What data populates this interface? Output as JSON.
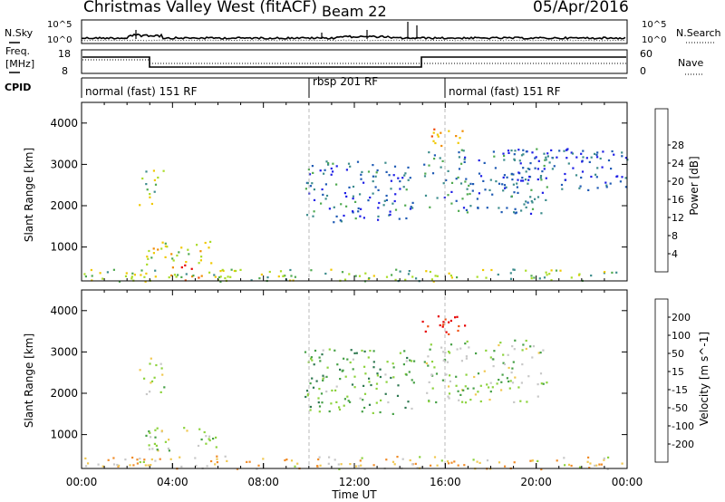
{
  "header": {
    "station": "Christmas Valley West (fitACF)",
    "beam": "Beam 22",
    "date": "05/Apr/2016"
  },
  "sky_panel": {
    "left_label": "N.Sky",
    "right_label": "N.Search",
    "ticks_left": [
      "10^5",
      "10^0"
    ],
    "ticks_right": [
      "10^5",
      "10^0"
    ]
  },
  "freq_panel": {
    "left_label_1": "Freq.",
    "left_label_2": "[MHz]",
    "right_label": "Nave",
    "ticks_left": [
      "18",
      "8"
    ],
    "ticks_right": [
      "60",
      "0"
    ]
  },
  "cpid": {
    "label": "CPID",
    "segments": [
      {
        "start_hour": 0,
        "label": "normal (fast) 151 RF"
      },
      {
        "start_hour": 10,
        "label": "rbsp 201 RF"
      },
      {
        "start_hour": 16,
        "label": "normal (fast) 151 RF"
      }
    ]
  },
  "chart_data": [
    {
      "type": "heatmap",
      "ylabel": "Slant Range [km]",
      "yticks": [
        "1000",
        "2000",
        "3000",
        "4000"
      ],
      "ylim": [
        180,
        4500
      ],
      "xlim": [
        0,
        24
      ],
      "colorbar": {
        "label": "Power [dB]",
        "ticks": [
          "4",
          "8",
          "12",
          "16",
          "20",
          "24",
          "28"
        ],
        "colors": [
          "#1e1ee6",
          "#1e5ab4",
          "#3c8c8c",
          "#50aa50",
          "#aadc28",
          "#f0c800",
          "#f08c00",
          "#f04600",
          "#e60000"
        ]
      },
      "regions": [
        {
          "t0": 2.8,
          "t1": 5.9,
          "r0": 600,
          "r1": 1200,
          "level": 0.55
        },
        {
          "t0": 3.6,
          "t1": 5.4,
          "r0": 200,
          "r1": 650,
          "level": 0.85
        },
        {
          "t0": 14.9,
          "t1": 16.8,
          "r0": 3450,
          "r1": 3900,
          "level": 0.7
        },
        {
          "t0": 2.5,
          "t1": 3.6,
          "r0": 2000,
          "r1": 2900,
          "level": 0.45
        },
        {
          "t0": 9.8,
          "t1": 14.6,
          "r0": 1600,
          "r1": 3100,
          "level": 0.2
        },
        {
          "t0": 15.0,
          "t1": 20.5,
          "r0": 1800,
          "r1": 3400,
          "level": 0.25
        },
        {
          "t0": 18.5,
          "t1": 24.0,
          "r0": 2400,
          "r1": 3400,
          "level": 0.15
        },
        {
          "t0": 0.0,
          "t1": 24.0,
          "r0": 180,
          "r1": 480,
          "level": 0.45
        }
      ]
    },
    {
      "type": "heatmap",
      "ylabel": "Slant Range [km]",
      "yticks": [
        "1000",
        "2000",
        "3000",
        "4000"
      ],
      "ylim": [
        180,
        4500
      ],
      "xlim": [
        0,
        24
      ],
      "colorbar": {
        "label": "Velocity [m s^-1]",
        "ticks": [
          "200",
          "100",
          "50",
          "15",
          "-15",
          "-50",
          "-100",
          "-200"
        ],
        "colors": [
          "#1e3cb4",
          "#2d7850",
          "#46a046",
          "#8cd23c",
          "#c8c8c8",
          "#f0c850",
          "#f08c28",
          "#f05014",
          "#e60000"
        ]
      },
      "regions": [
        {
          "t0": 2.8,
          "t1": 5.9,
          "r0": 600,
          "r1": 1200,
          "level": 0.45
        },
        {
          "t0": 14.9,
          "t1": 16.9,
          "r0": 3450,
          "r1": 3950,
          "level": 0.98
        },
        {
          "t0": 2.5,
          "t1": 3.6,
          "r0": 2000,
          "r1": 2900,
          "level": 0.45
        },
        {
          "t0": 9.8,
          "t1": 14.6,
          "r0": 1500,
          "r1": 3100,
          "level": 0.3
        },
        {
          "t0": 15.0,
          "t1": 20.5,
          "r0": 1800,
          "r1": 3300,
          "level": 0.42
        },
        {
          "t0": 0.0,
          "t1": 24.0,
          "r0": 180,
          "r1": 500,
          "level": 0.6
        }
      ]
    }
  ],
  "time_axis": {
    "label": "Time UT",
    "ticks": [
      "00:00",
      "04:00",
      "08:00",
      "12:00",
      "16:00",
      "20:00",
      "00:00"
    ]
  }
}
